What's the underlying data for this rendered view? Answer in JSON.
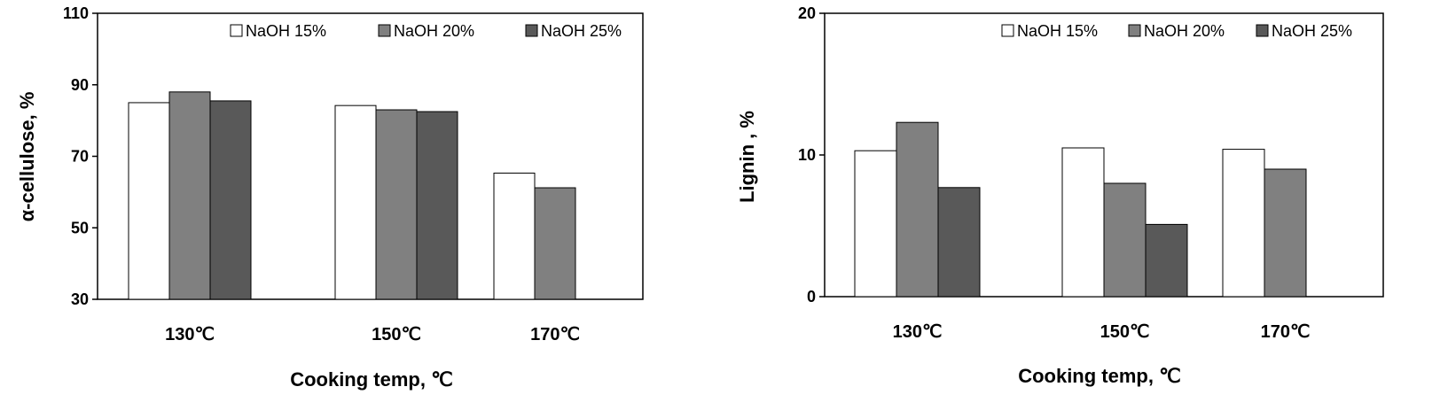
{
  "chart_data": [
    {
      "type": "bar",
      "categories": [
        "130℃",
        "150℃",
        "170℃"
      ],
      "series": [
        {
          "name": "NaOH 15%",
          "values": [
            85,
            84.2,
            65.3
          ],
          "color": "#ffffff"
        },
        {
          "name": "NaOH 20%",
          "values": [
            88,
            83,
            61.2
          ],
          "color": "#808080"
        },
        {
          "name": "NaOH 25%",
          "values": [
            85.5,
            82.5,
            null
          ],
          "color": "#595959"
        }
      ],
      "xlabel": "Cooking temp,  ℃",
      "ylabel": "α-cellulose, %",
      "ylim": [
        30,
        110
      ],
      "yticks": [
        "30",
        "50",
        "70",
        "90",
        "110"
      ],
      "grid": false,
      "legend": "top-right"
    },
    {
      "type": "bar",
      "categories": [
        "130℃",
        "150℃",
        "170℃"
      ],
      "series": [
        {
          "name": "NaOH 15%",
          "values": [
            10.3,
            10.5,
            10.4
          ],
          "color": "#ffffff"
        },
        {
          "name": "NaOH 20%",
          "values": [
            12.3,
            8,
            9
          ],
          "color": "#808080"
        },
        {
          "name": "NaOH 25%",
          "values": [
            7.7,
            5.1,
            null
          ],
          "color": "#595959"
        }
      ],
      "xlabel": "Cooking temp, ℃",
      "ylabel": "Lignin , %",
      "ylim": [
        0,
        20
      ],
      "yticks": [
        "0",
        "10",
        "20"
      ],
      "grid": false,
      "legend": "top-right"
    }
  ]
}
